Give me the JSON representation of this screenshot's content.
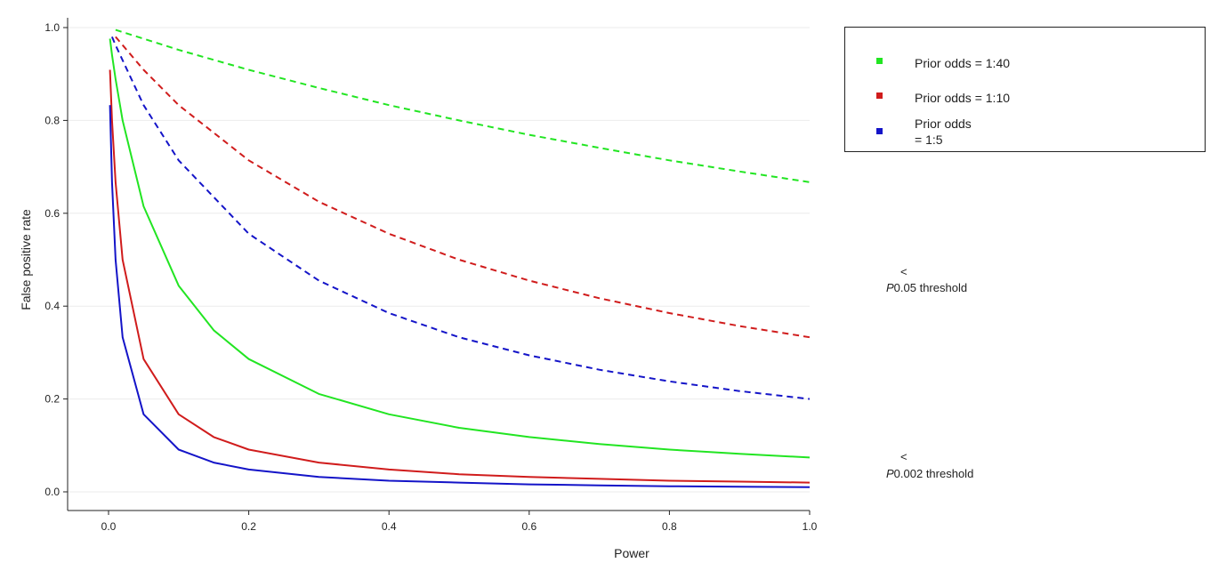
{
  "chart_data": {
    "type": "line",
    "xlabel": "Power",
    "ylabel": "False positive rate",
    "xlim": [
      0,
      1
    ],
    "ylim": [
      0,
      1
    ],
    "x_ticks": [
      "0.0",
      "0.2",
      "0.4",
      "0.6",
      "0.8",
      "1.0"
    ],
    "y_ticks": [
      "0.0",
      "0.2",
      "0.4",
      "0.6",
      "0.8",
      "1.0"
    ],
    "grid": "horizontal",
    "legend_position": "top-right",
    "legend": [
      {
        "label": "Prior odds = 1:40",
        "color": "#22e522"
      },
      {
        "label": "Prior odds = 1:10",
        "color": "#d01c1c"
      },
      {
        "label": "Prior odds",
        "label_line2": "= 1:5",
        "color": "#1414c8"
      }
    ],
    "annotations": [
      {
        "symbol": "<",
        "italic": "P",
        "text": "0.05 threshold",
        "applies_to": "dashed"
      },
      {
        "symbol": "<",
        "italic": "P",
        "text": "0.002 threshold",
        "applies_to": "solid"
      }
    ],
    "series": [
      {
        "name": "Prior odds = 1:40",
        "threshold": "0.05",
        "style": "dashed",
        "color": "#22e522",
        "x": [
          0.01,
          0.05,
          0.1,
          0.2,
          0.3,
          0.4,
          0.5,
          0.6,
          0.7,
          0.8,
          0.9,
          1.0
        ],
        "y": [
          0.995,
          0.976,
          0.952,
          0.909,
          0.87,
          0.833,
          0.8,
          0.769,
          0.741,
          0.714,
          0.69,
          0.667
        ]
      },
      {
        "name": "Prior odds = 1:10",
        "threshold": "0.05",
        "style": "dashed",
        "color": "#d01c1c",
        "x": [
          0.01,
          0.05,
          0.1,
          0.2,
          0.3,
          0.4,
          0.5,
          0.6,
          0.7,
          0.8,
          0.9,
          1.0
        ],
        "y": [
          0.98,
          0.909,
          0.833,
          0.714,
          0.625,
          0.556,
          0.5,
          0.455,
          0.417,
          0.385,
          0.357,
          0.333
        ]
      },
      {
        "name": "Prior odds = 1:5",
        "threshold": "0.05",
        "style": "dashed",
        "color": "#1414c8",
        "x": [
          0.005,
          0.01,
          0.05,
          0.1,
          0.2,
          0.3,
          0.4,
          0.5,
          0.6,
          0.7,
          0.8,
          0.9,
          1.0
        ],
        "y": [
          0.98,
          0.962,
          0.833,
          0.714,
          0.556,
          0.455,
          0.385,
          0.333,
          0.294,
          0.263,
          0.238,
          0.217,
          0.2
        ]
      },
      {
        "name": "Prior odds = 1:40",
        "threshold": "0.002",
        "style": "solid",
        "color": "#22e522",
        "x": [
          0.002,
          0.005,
          0.01,
          0.02,
          0.05,
          0.1,
          0.15,
          0.2,
          0.3,
          0.4,
          0.5,
          0.6,
          0.7,
          0.8,
          0.9,
          1.0
        ],
        "y": [
          0.976,
          0.941,
          0.889,
          0.8,
          0.615,
          0.444,
          0.348,
          0.286,
          0.211,
          0.167,
          0.138,
          0.118,
          0.103,
          0.091,
          0.082,
          0.074
        ]
      },
      {
        "name": "Prior odds = 1:10",
        "threshold": "0.002",
        "style": "solid",
        "color": "#d01c1c",
        "x": [
          0.002,
          0.005,
          0.01,
          0.02,
          0.05,
          0.1,
          0.15,
          0.2,
          0.3,
          0.4,
          0.5,
          0.6,
          0.7,
          0.8,
          0.9,
          1.0
        ],
        "y": [
          0.909,
          0.8,
          0.667,
          0.5,
          0.286,
          0.167,
          0.118,
          0.091,
          0.063,
          0.048,
          0.038,
          0.032,
          0.028,
          0.024,
          0.022,
          0.02
        ]
      },
      {
        "name": "Prior odds = 1:5",
        "threshold": "0.002",
        "style": "solid",
        "color": "#1414c8",
        "x": [
          0.002,
          0.005,
          0.01,
          0.02,
          0.05,
          0.1,
          0.15,
          0.2,
          0.3,
          0.4,
          0.5,
          0.6,
          0.7,
          0.8,
          0.9,
          1.0
        ],
        "y": [
          0.833,
          0.667,
          0.5,
          0.333,
          0.167,
          0.091,
          0.063,
          0.048,
          0.032,
          0.024,
          0.02,
          0.016,
          0.014,
          0.012,
          0.011,
          0.01
        ]
      }
    ]
  }
}
